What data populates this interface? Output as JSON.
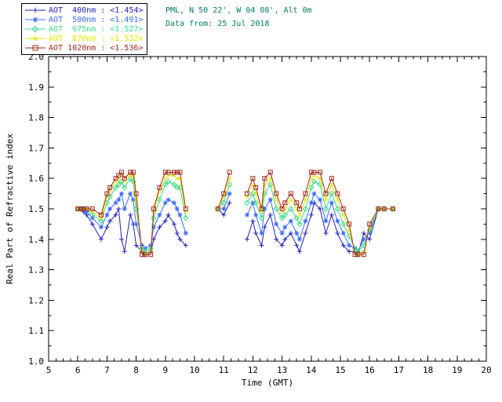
{
  "header": {
    "location": "PML, N 50 22', W 04 08', Alt 0m",
    "date": "Data from: 25 Jul 2018",
    "color": "#007a66"
  },
  "legend": {
    "entries": [
      {
        "label": "AOT  400nm : <1.454>",
        "color": "#2222bb",
        "marker": "plus"
      },
      {
        "label": "AOT  500nm : <1.491>",
        "color": "#3b6cff",
        "marker": "asterisk"
      },
      {
        "label": "AOT  675nm : <1.527>",
        "color": "#3cd98a",
        "marker": "diamond"
      },
      {
        "label": "AOT  870nm : <1.532>",
        "color": "#e6e600",
        "marker": "cross"
      },
      {
        "label": "AOT 1020nm : <1.536>",
        "color": "#a02820",
        "marker": "square"
      }
    ]
  },
  "chart_data": {
    "type": "line",
    "title": "",
    "xlabel": "Time (GMT)",
    "ylabel": "Real Part of Refractive index",
    "xlim": [
      5,
      20
    ],
    "ylim": [
      1.0,
      2.0
    ],
    "xticks": [
      5,
      6,
      7,
      8,
      9,
      10,
      11,
      12,
      13,
      14,
      15,
      16,
      17,
      18,
      19,
      20
    ],
    "yticks": [
      1.0,
      1.1,
      1.2,
      1.3,
      1.4,
      1.5,
      1.6,
      1.7,
      1.8,
      1.9,
      2.0
    ],
    "grid": false,
    "legend_position": "top-left-outside",
    "x": [
      6.0,
      6.1,
      6.2,
      6.3,
      6.5,
      6.8,
      7.0,
      7.1,
      7.3,
      7.4,
      7.5,
      7.6,
      7.8,
      7.9,
      8.0,
      8.2,
      8.3,
      8.5,
      8.6,
      8.8,
      9.0,
      9.1,
      9.3,
      9.4,
      9.5,
      9.7,
      10.8,
      11.0,
      11.2,
      11.8,
      12.0,
      12.1,
      12.3,
      12.4,
      12.6,
      12.8,
      13.0,
      13.1,
      13.3,
      13.5,
      13.6,
      13.8,
      14.0,
      14.1,
      14.3,
      14.5,
      14.7,
      14.9,
      15.1,
      15.3,
      15.5,
      15.6,
      15.8,
      16.0,
      16.3,
      16.5,
      16.8
    ],
    "series": [
      {
        "name": "AOT 400nm",
        "mean": "<1.454>",
        "color": "#2222bb",
        "marker": "plus",
        "values": [
          1.5,
          1.5,
          1.49,
          1.48,
          1.45,
          1.4,
          1.44,
          1.46,
          1.48,
          1.5,
          1.4,
          1.36,
          1.48,
          1.45,
          1.38,
          1.36,
          1.35,
          1.36,
          1.4,
          1.44,
          1.46,
          1.48,
          1.45,
          1.42,
          1.4,
          1.38,
          1.5,
          1.48,
          1.52,
          1.4,
          1.46,
          1.42,
          1.38,
          1.44,
          1.48,
          1.4,
          1.38,
          1.4,
          1.42,
          1.38,
          1.36,
          1.42,
          1.48,
          1.52,
          1.5,
          1.42,
          1.48,
          1.42,
          1.38,
          1.36,
          1.36,
          1.35,
          1.42,
          1.4,
          1.5,
          1.5,
          1.5
        ]
      },
      {
        "name": "AOT 500nm",
        "mean": "<1.491>",
        "color": "#3b6cff",
        "marker": "asterisk",
        "values": [
          1.5,
          1.5,
          1.5,
          1.49,
          1.47,
          1.44,
          1.48,
          1.5,
          1.52,
          1.53,
          1.55,
          1.5,
          1.55,
          1.53,
          1.45,
          1.38,
          1.37,
          1.38,
          1.44,
          1.48,
          1.52,
          1.53,
          1.52,
          1.5,
          1.48,
          1.42,
          1.5,
          1.5,
          1.55,
          1.48,
          1.52,
          1.48,
          1.42,
          1.5,
          1.53,
          1.45,
          1.42,
          1.44,
          1.46,
          1.42,
          1.4,
          1.46,
          1.52,
          1.55,
          1.53,
          1.46,
          1.52,
          1.46,
          1.42,
          1.38,
          1.37,
          1.36,
          1.4,
          1.42,
          1.5,
          1.5,
          1.5
        ]
      },
      {
        "name": "AOT 675nm",
        "mean": "<1.527>",
        "color": "#3cd98a",
        "marker": "diamond",
        "values": [
          1.5,
          1.5,
          1.5,
          1.5,
          1.48,
          1.46,
          1.52,
          1.54,
          1.57,
          1.58,
          1.59,
          1.57,
          1.6,
          1.59,
          1.5,
          1.37,
          1.36,
          1.37,
          1.47,
          1.53,
          1.58,
          1.59,
          1.58,
          1.57,
          1.57,
          1.47,
          1.5,
          1.52,
          1.58,
          1.52,
          1.55,
          1.52,
          1.47,
          1.55,
          1.58,
          1.5,
          1.47,
          1.48,
          1.5,
          1.47,
          1.45,
          1.5,
          1.57,
          1.59,
          1.58,
          1.5,
          1.55,
          1.5,
          1.45,
          1.41,
          1.37,
          1.36,
          1.38,
          1.43,
          1.5,
          1.5,
          1.5
        ]
      },
      {
        "name": "AOT 870nm",
        "mean": "<1.532>",
        "color": "#e6e600",
        "marker": "cross",
        "values": [
          1.5,
          1.5,
          1.5,
          1.5,
          1.49,
          1.47,
          1.54,
          1.56,
          1.59,
          1.6,
          1.61,
          1.59,
          1.61,
          1.61,
          1.53,
          1.36,
          1.35,
          1.36,
          1.49,
          1.56,
          1.6,
          1.61,
          1.61,
          1.6,
          1.6,
          1.49,
          1.5,
          1.54,
          1.6,
          1.54,
          1.58,
          1.55,
          1.49,
          1.58,
          1.6,
          1.53,
          1.49,
          1.5,
          1.53,
          1.5,
          1.48,
          1.53,
          1.6,
          1.61,
          1.6,
          1.53,
          1.58,
          1.53,
          1.48,
          1.43,
          1.36,
          1.35,
          1.36,
          1.44,
          1.5,
          1.5,
          1.5
        ]
      },
      {
        "name": "AOT 1020nm",
        "mean": "<1.536>",
        "color": "#a02820",
        "marker": "square",
        "values": [
          1.5,
          1.5,
          1.5,
          1.5,
          1.5,
          1.48,
          1.55,
          1.57,
          1.6,
          1.61,
          1.62,
          1.6,
          1.62,
          1.62,
          1.55,
          1.35,
          1.35,
          1.35,
          1.5,
          1.57,
          1.62,
          1.62,
          1.62,
          1.62,
          1.62,
          1.5,
          1.5,
          1.55,
          1.62,
          1.55,
          1.6,
          1.57,
          1.5,
          1.6,
          1.62,
          1.55,
          1.5,
          1.52,
          1.55,
          1.52,
          1.5,
          1.55,
          1.62,
          1.62,
          1.62,
          1.55,
          1.6,
          1.55,
          1.5,
          1.45,
          1.35,
          1.35,
          1.35,
          1.45,
          1.5,
          1.5,
          1.5
        ]
      }
    ]
  }
}
